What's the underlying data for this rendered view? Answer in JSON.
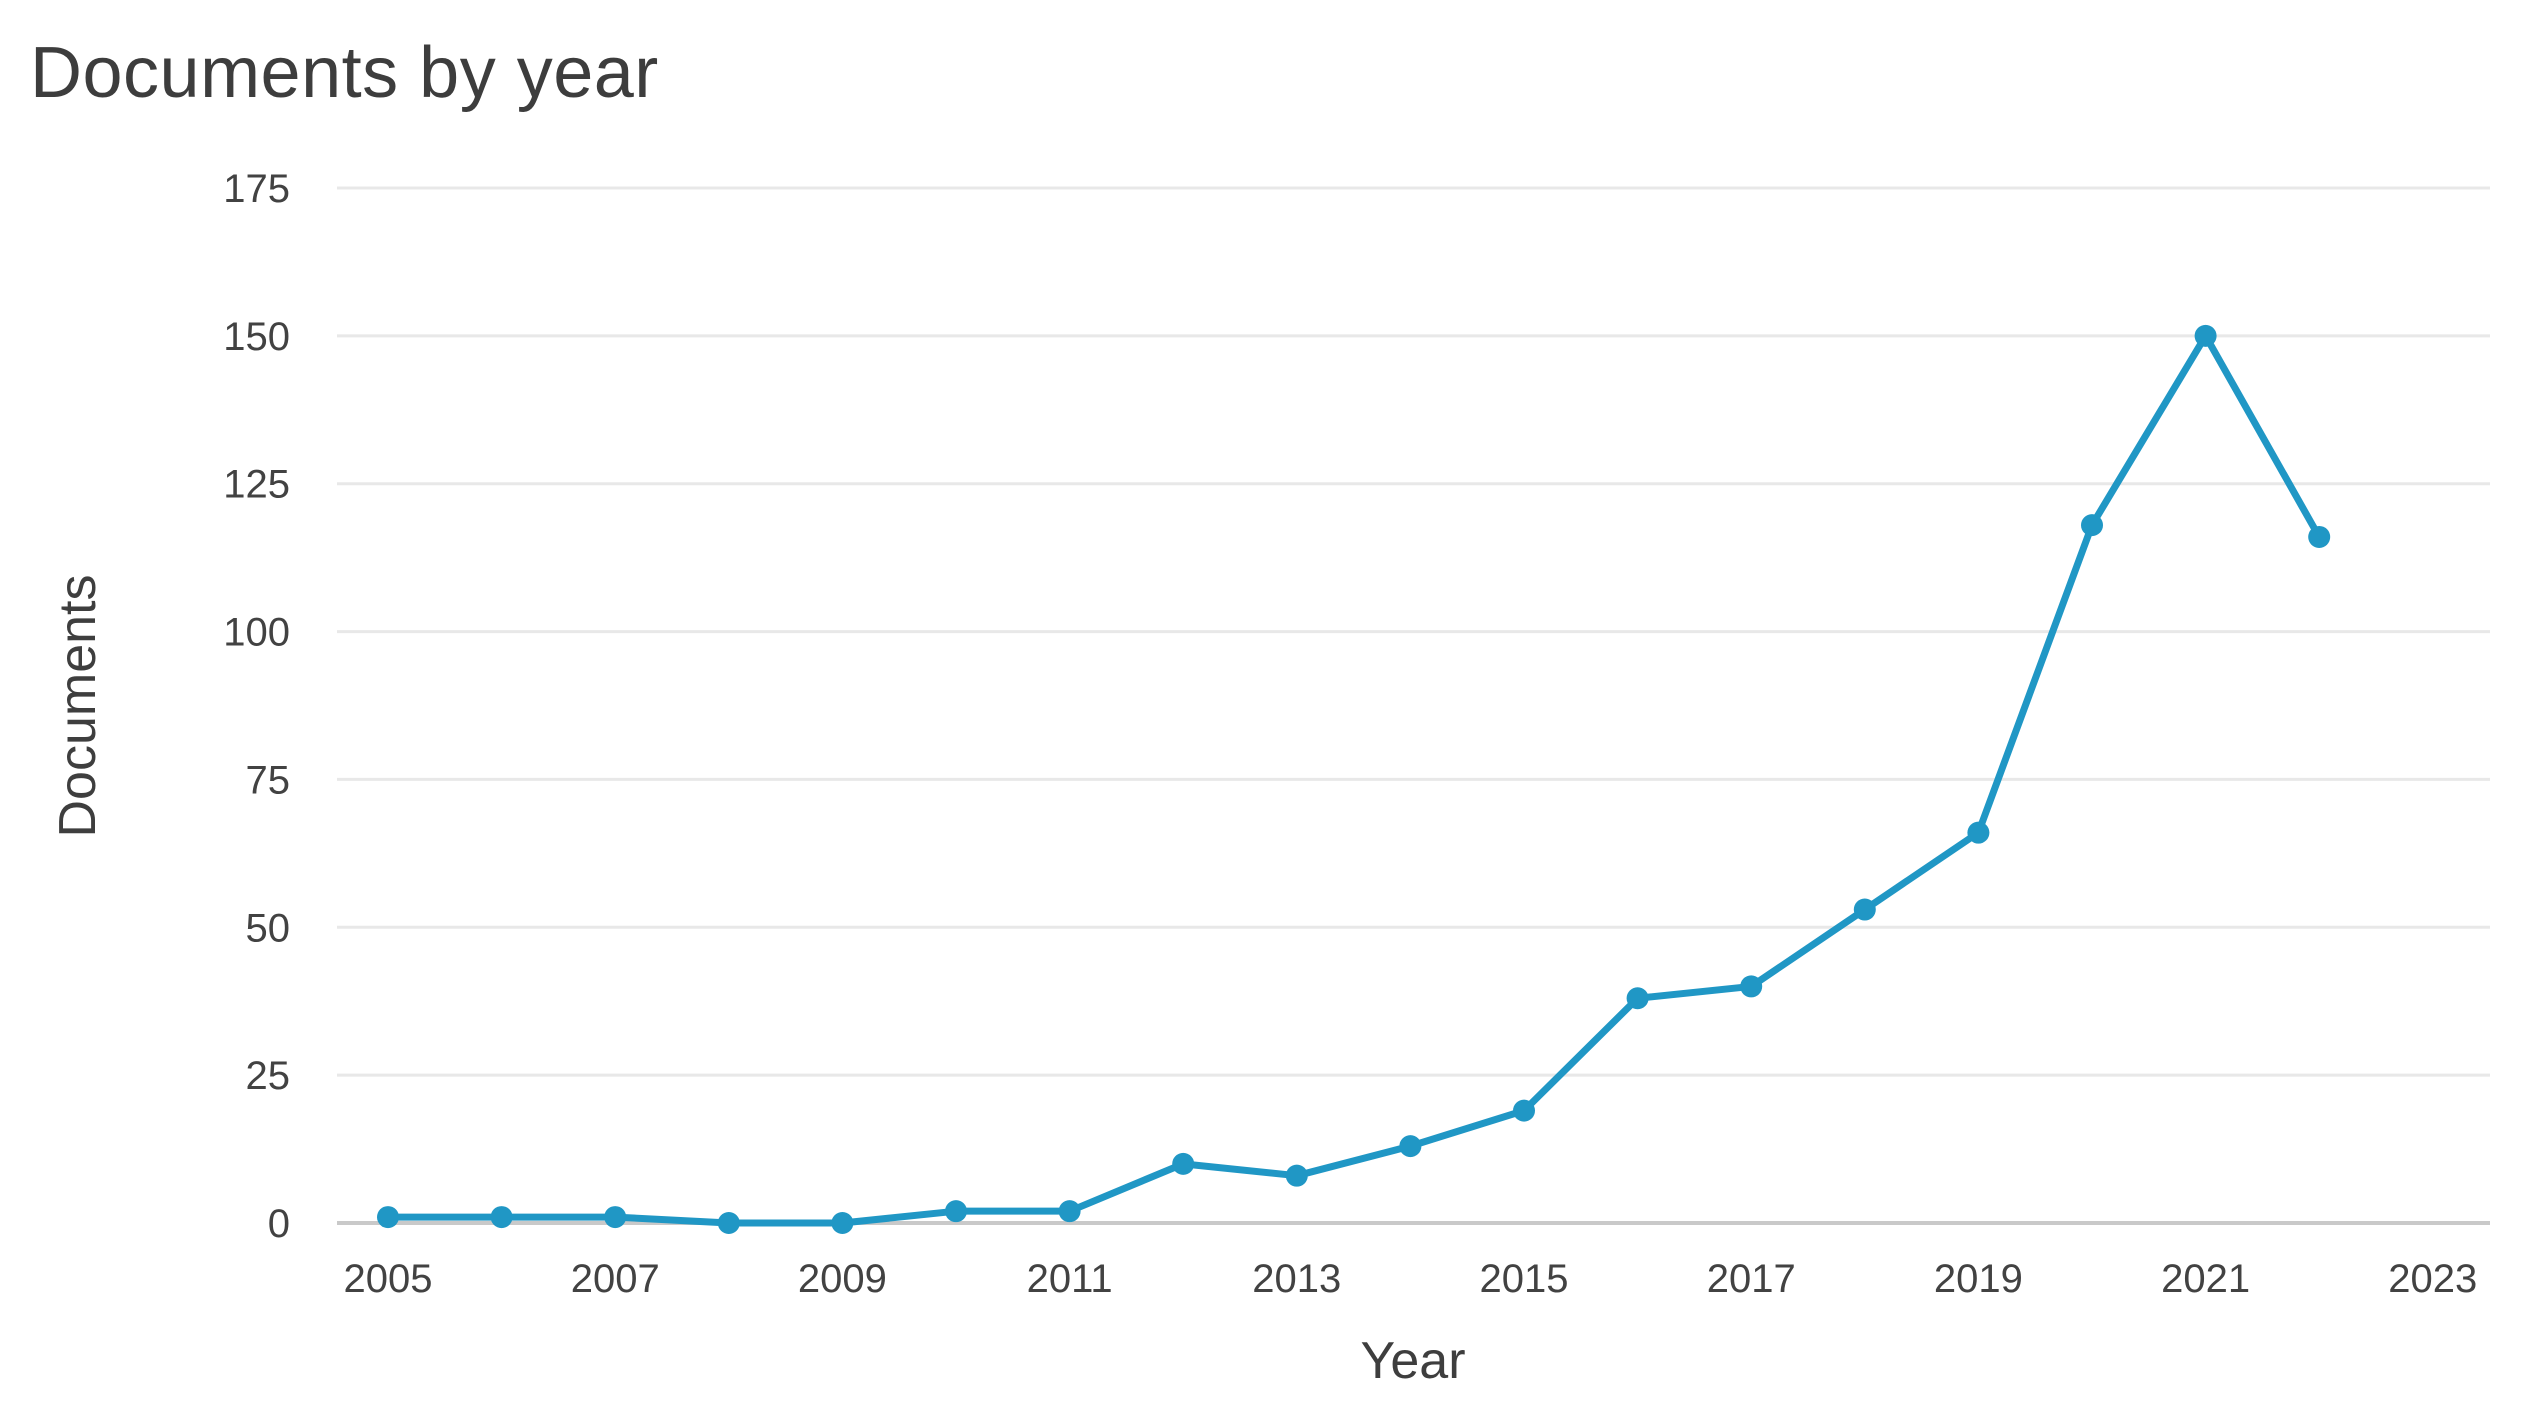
{
  "chart": {
    "title": "Documents by year"
  },
  "colors": {
    "line": "#2097c5",
    "grid": "#e8e8e8",
    "zero_axis": "#c9c9c9",
    "text": "#3e3e3e"
  },
  "chart_data": {
    "type": "line",
    "title": "Documents by year",
    "xlabel": "Year",
    "ylabel": "Documents",
    "x": [
      2005,
      2006,
      2007,
      2008,
      2009,
      2010,
      2011,
      2012,
      2013,
      2014,
      2015,
      2016,
      2017,
      2018,
      2019,
      2020,
      2021,
      2022
    ],
    "series": [
      {
        "name": "Documents",
        "values": [
          1,
          1,
          1,
          0,
          0,
          2,
          2,
          10,
          8,
          13,
          19,
          38,
          40,
          53,
          66,
          118,
          150,
          116
        ]
      }
    ],
    "x_tick_labels": [
      "2005",
      "2007",
      "2009",
      "2011",
      "2013",
      "2015",
      "2017",
      "2019",
      "2021",
      "2023"
    ],
    "y_ticks": [
      0,
      25,
      50,
      75,
      100,
      125,
      150,
      175
    ],
    "ylim": [
      0,
      175
    ],
    "xlim": [
      2005,
      2023
    ],
    "grid": "horizontal-only",
    "legend": "none",
    "markers": "filled-circle",
    "line_color": "#2097c5"
  }
}
